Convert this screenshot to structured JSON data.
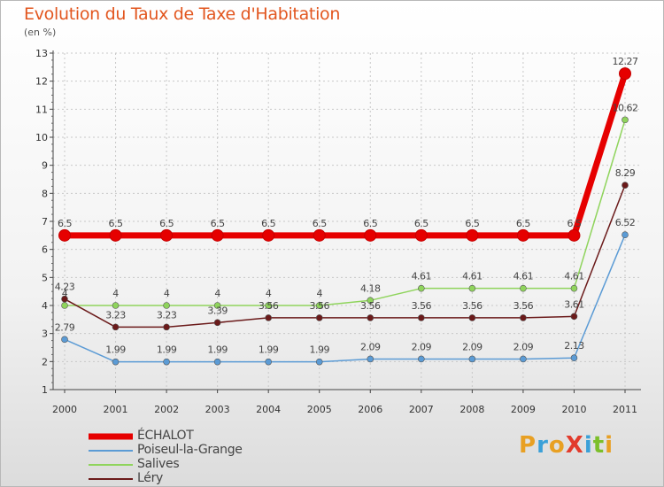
{
  "header": {
    "title": "Evolution du Taux de Taxe d'Habitation",
    "subtitle": "(en %)"
  },
  "logo": {
    "text": "ProXiti",
    "colors": [
      "#e8a023",
      "#3aa0d8",
      "#e8a023",
      "#e23b2c",
      "#3aa0d8",
      "#7cbf2a",
      "#e8a023"
    ]
  },
  "chart_data": {
    "type": "line",
    "title": "Evolution du Taux de Taxe d'Habitation",
    "subtitle": "(en %)",
    "xlabel": "",
    "ylabel": "",
    "x": [
      "2000",
      "2001",
      "2002",
      "2003",
      "2004",
      "2005",
      "2006",
      "2007",
      "2008",
      "2009",
      "2010",
      "2011"
    ],
    "ylim": [
      1,
      13
    ],
    "yticks": [
      "1",
      "2",
      "3",
      "4",
      "5",
      "6",
      "7",
      "8",
      "9",
      "10",
      "11",
      "12",
      "13"
    ],
    "grid": true,
    "legend_position": "bottom-left",
    "series": [
      {
        "name": "ÉCHALOT",
        "color": "#e60000",
        "values": [
          6.5,
          6.5,
          6.5,
          6.5,
          6.5,
          6.5,
          6.5,
          6.5,
          6.5,
          6.5,
          6.5,
          12.27
        ],
        "labels": [
          "6.5",
          "6.5",
          "6.5",
          "6.5",
          "6.5",
          "6.5",
          "6.5",
          "6.5",
          "6.5",
          "6.5",
          "6.5",
          "12.27"
        ]
      },
      {
        "name": "Poiseul-la-Grange",
        "color": "#5b9bd5",
        "values": [
          2.79,
          1.99,
          1.99,
          1.99,
          1.99,
          1.99,
          2.09,
          2.09,
          2.09,
          2.09,
          2.13,
          6.52
        ],
        "labels": [
          "2.79",
          "1.99",
          "1.99",
          "1.99",
          "1.99",
          "1.99",
          "2.09",
          "2.09",
          "2.09",
          "2.09",
          "2.13",
          "6.52"
        ]
      },
      {
        "name": "Salives",
        "color": "#8fd45c",
        "values": [
          4,
          4,
          4,
          4,
          4,
          4,
          4.18,
          4.61,
          4.61,
          4.61,
          4.61,
          10.62
        ],
        "labels": [
          "4",
          "4",
          "4",
          "4",
          "4",
          "4",
          "4.18",
          "4.61",
          "4.61",
          "4.61",
          "4.61",
          "10.62"
        ]
      },
      {
        "name": "Léry",
        "color": "#6b1a1a",
        "values": [
          4.23,
          3.23,
          3.23,
          3.39,
          3.56,
          3.56,
          3.56,
          3.56,
          3.56,
          3.56,
          3.61,
          8.29
        ],
        "labels": [
          "4.23",
          "3.23",
          "3.23",
          "3.39",
          "3.56",
          "3.56",
          "3.56",
          "3.56",
          "3.56",
          "3.56",
          "3.61",
          "8.29"
        ]
      }
    ]
  }
}
